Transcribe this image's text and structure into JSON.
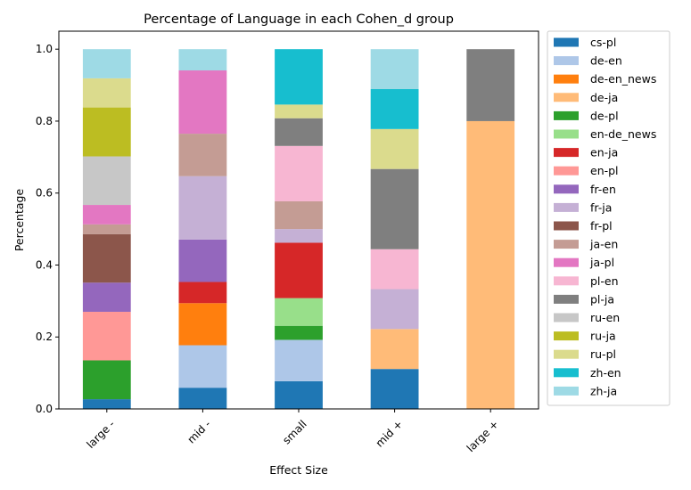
{
  "chart_data": {
    "type": "bar",
    "stacked": true,
    "title": "Percentage of Language in each Cohen_d group",
    "xlabel": "Effect Size",
    "ylabel": "Percentage",
    "ylim": [
      0,
      1.05
    ],
    "yticks": [
      "0.0",
      "0.2",
      "0.4",
      "0.6",
      "0.8",
      "1.0"
    ],
    "categories": [
      "large -",
      "mid -",
      "small",
      "mid +",
      "large +"
    ],
    "legend_position": "outside-right",
    "series": [
      {
        "name": "cs-pl",
        "color": "#1f77b4",
        "values": [
          0.027,
          0.059,
          0.077,
          0.111,
          0
        ]
      },
      {
        "name": "de-en",
        "color": "#aec7e8",
        "values": [
          0,
          0.118,
          0.115,
          0,
          0
        ]
      },
      {
        "name": "de-en_news",
        "color": "#ff7f0e",
        "values": [
          0,
          0.117,
          0,
          0,
          0
        ]
      },
      {
        "name": "de-ja",
        "color": "#ffbb78",
        "values": [
          0,
          0,
          0,
          0.111,
          0.8
        ]
      },
      {
        "name": "de-pl",
        "color": "#2ca02c",
        "values": [
          0.108,
          0,
          0.039,
          0,
          0
        ]
      },
      {
        "name": "en-de_news",
        "color": "#98df8a",
        "values": [
          0,
          0,
          0.077,
          0,
          0
        ]
      },
      {
        "name": "en-ja",
        "color": "#d62728",
        "values": [
          0,
          0.059,
          0.154,
          0,
          0
        ]
      },
      {
        "name": "en-pl",
        "color": "#ff9896",
        "values": [
          0.135,
          0,
          0,
          0,
          0
        ]
      },
      {
        "name": "fr-en",
        "color": "#9467bd",
        "values": [
          0.081,
          0.118,
          0,
          0,
          0
        ]
      },
      {
        "name": "fr-ja",
        "color": "#c5b0d5",
        "values": [
          0,
          0.176,
          0.038,
          0.111,
          0
        ]
      },
      {
        "name": "fr-pl",
        "color": "#8c564b",
        "values": [
          0.135,
          0,
          0,
          0,
          0
        ]
      },
      {
        "name": "ja-en",
        "color": "#c49c94",
        "values": [
          0.027,
          0.118,
          0.077,
          0,
          0
        ]
      },
      {
        "name": "ja-pl",
        "color": "#e377c2",
        "values": [
          0.054,
          0.176,
          0,
          0,
          0
        ]
      },
      {
        "name": "pl-en",
        "color": "#f7b6d2",
        "values": [
          0,
          0,
          0.154,
          0.111,
          0
        ]
      },
      {
        "name": "pl-ja",
        "color": "#7f7f7f",
        "values": [
          0,
          0,
          0.077,
          0.223,
          0.2
        ]
      },
      {
        "name": "ru-en",
        "color": "#c7c7c7",
        "values": [
          0.135,
          0,
          0,
          0,
          0
        ]
      },
      {
        "name": "ru-ja",
        "color": "#bcbd22",
        "values": [
          0.136,
          0,
          0,
          0,
          0
        ]
      },
      {
        "name": "ru-pl",
        "color": "#dbdb8d",
        "values": [
          0.081,
          0,
          0.038,
          0.111,
          0
        ]
      },
      {
        "name": "zh-en",
        "color": "#17becf",
        "values": [
          0,
          0,
          0.154,
          0.111,
          0
        ]
      },
      {
        "name": "zh-ja",
        "color": "#9edae5",
        "values": [
          0.081,
          0.059,
          0,
          0.111,
          0
        ]
      }
    ]
  }
}
